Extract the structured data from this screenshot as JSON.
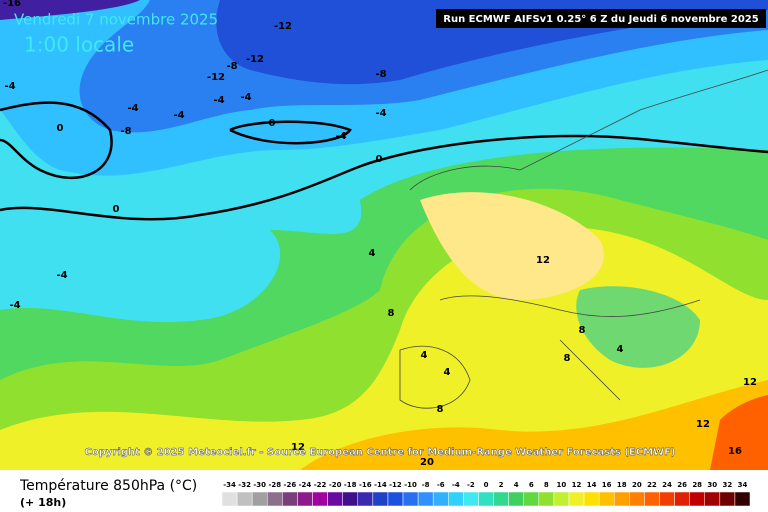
{
  "header": {
    "date": "Vendredi 7 novembre 2025",
    "time": "1:00 locale",
    "run": "Run ECMWF AIFSv1 0.25° 6 Z du Jeudi 6 novembre 2025"
  },
  "copyright": "Copyright © 2025 Meteociel.fr - Source European Centre for Medium-Range Weather Forecasts (ECMWF)",
  "contour_labels": [
    "-16",
    "-12",
    "-12",
    "-8",
    "-12",
    "-4",
    "-8",
    "-4",
    "-4",
    "-4",
    "-4",
    "-4",
    "-8",
    "0",
    "0",
    "-4",
    "0",
    "0",
    "4",
    "-4",
    "-4",
    "8",
    "12",
    "8",
    "8",
    "4",
    "4",
    "4",
    "8",
    "12",
    "12",
    "16",
    "20",
    "12"
  ],
  "legend": {
    "title": "Température 850hPa (°C)",
    "subtitle": "(+ 18h)",
    "ticks": [
      -34,
      -32,
      -30,
      -28,
      -26,
      -24,
      -22,
      -20,
      -18,
      -16,
      -14,
      -12,
      -10,
      -8,
      -6,
      -4,
      -2,
      0,
      2,
      4,
      6,
      8,
      10,
      12,
      14,
      16,
      18,
      20,
      22,
      24,
      26,
      28,
      30,
      32,
      34
    ],
    "colors": [
      "#e0e0e0",
      "#c0c0c0",
      "#a0a0a0",
      "#8c6f8c",
      "#7a3f7a",
      "#8c1a8c",
      "#a000a0",
      "#6a0aa0",
      "#40108c",
      "#3a2ab0",
      "#2040c8",
      "#1e50e0",
      "#2870f0",
      "#3090ff",
      "#30b0ff",
      "#30d0ff",
      "#40e8f0",
      "#30e0c0",
      "#30d890",
      "#40d060",
      "#60d840",
      "#90e030",
      "#c0f030",
      "#f0f028",
      "#ffe000",
      "#ffc000",
      "#ffa000",
      "#ff8000",
      "#ff6000",
      "#f04000",
      "#e02000",
      "#c00000",
      "#a00000",
      "#700000",
      "#300000"
    ]
  }
}
